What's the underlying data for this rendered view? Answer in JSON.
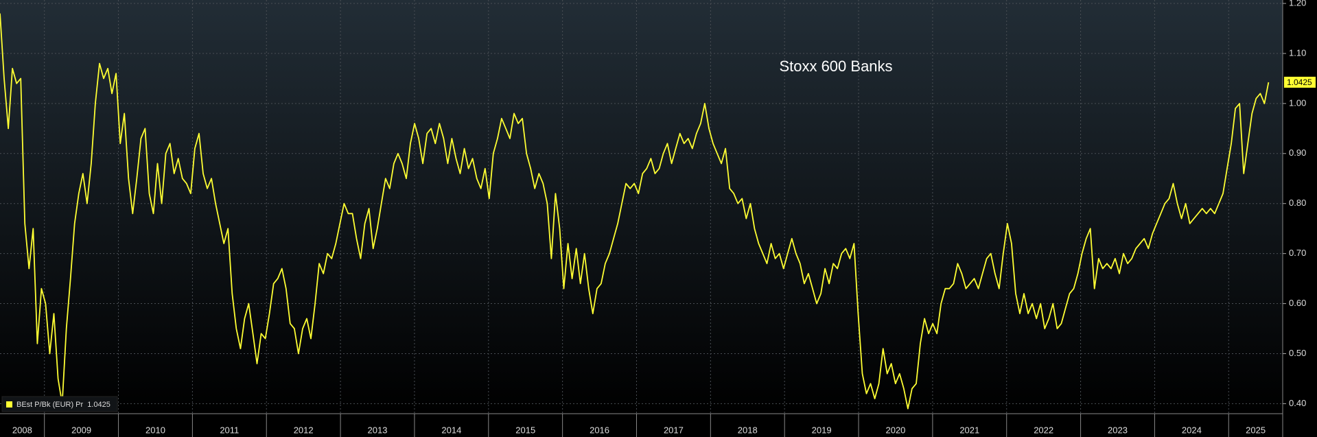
{
  "chart_data": {
    "type": "line",
    "title": "Stoxx 600 Banks",
    "series": [
      {
        "name": "BEst P/Bk (EUR) Pr",
        "color": "#ffff33",
        "values": [
          1.18,
          1.05,
          0.95,
          1.07,
          1.04,
          1.05,
          0.76,
          0.67,
          0.75,
          0.52,
          0.63,
          0.6,
          0.5,
          0.58,
          0.45,
          0.4,
          0.55,
          0.65,
          0.76,
          0.82,
          0.86,
          0.8,
          0.88,
          1.0,
          1.08,
          1.05,
          1.07,
          1.02,
          1.06,
          0.92,
          0.98,
          0.85,
          0.78,
          0.85,
          0.93,
          0.95,
          0.82,
          0.78,
          0.88,
          0.8,
          0.9,
          0.92,
          0.86,
          0.89,
          0.85,
          0.84,
          0.82,
          0.91,
          0.94,
          0.86,
          0.83,
          0.85,
          0.8,
          0.76,
          0.72,
          0.75,
          0.62,
          0.55,
          0.51,
          0.57,
          0.6,
          0.54,
          0.48,
          0.54,
          0.53,
          0.58,
          0.64,
          0.65,
          0.67,
          0.63,
          0.56,
          0.55,
          0.5,
          0.55,
          0.57,
          0.53,
          0.6,
          0.68,
          0.66,
          0.7,
          0.69,
          0.72,
          0.76,
          0.8,
          0.78,
          0.78,
          0.73,
          0.69,
          0.76,
          0.79,
          0.71,
          0.75,
          0.8,
          0.85,
          0.83,
          0.88,
          0.9,
          0.88,
          0.85,
          0.92,
          0.96,
          0.93,
          0.88,
          0.94,
          0.95,
          0.92,
          0.96,
          0.93,
          0.88,
          0.93,
          0.89,
          0.86,
          0.91,
          0.87,
          0.89,
          0.85,
          0.83,
          0.87,
          0.81,
          0.9,
          0.93,
          0.97,
          0.95,
          0.93,
          0.98,
          0.96,
          0.97,
          0.9,
          0.87,
          0.83,
          0.86,
          0.84,
          0.8,
          0.69,
          0.82,
          0.75,
          0.63,
          0.72,
          0.65,
          0.71,
          0.64,
          0.7,
          0.63,
          0.58,
          0.63,
          0.64,
          0.68,
          0.7,
          0.73,
          0.76,
          0.8,
          0.84,
          0.83,
          0.84,
          0.82,
          0.86,
          0.87,
          0.89,
          0.86,
          0.87,
          0.9,
          0.92,
          0.88,
          0.91,
          0.94,
          0.92,
          0.93,
          0.91,
          0.94,
          0.96,
          1.0,
          0.95,
          0.92,
          0.9,
          0.88,
          0.91,
          0.83,
          0.82,
          0.8,
          0.81,
          0.77,
          0.8,
          0.75,
          0.72,
          0.7,
          0.68,
          0.72,
          0.69,
          0.7,
          0.67,
          0.7,
          0.73,
          0.7,
          0.68,
          0.64,
          0.66,
          0.63,
          0.6,
          0.62,
          0.67,
          0.64,
          0.68,
          0.67,
          0.7,
          0.71,
          0.69,
          0.72,
          0.58,
          0.46,
          0.42,
          0.44,
          0.41,
          0.44,
          0.51,
          0.46,
          0.48,
          0.44,
          0.46,
          0.43,
          0.39,
          0.43,
          0.44,
          0.52,
          0.57,
          0.54,
          0.56,
          0.54,
          0.6,
          0.63,
          0.63,
          0.64,
          0.68,
          0.66,
          0.63,
          0.64,
          0.65,
          0.63,
          0.66,
          0.69,
          0.7,
          0.66,
          0.63,
          0.7,
          0.76,
          0.72,
          0.62,
          0.58,
          0.62,
          0.58,
          0.6,
          0.57,
          0.6,
          0.55,
          0.57,
          0.6,
          0.55,
          0.56,
          0.59,
          0.62,
          0.63,
          0.66,
          0.7,
          0.73,
          0.75,
          0.63,
          0.69,
          0.67,
          0.68,
          0.67,
          0.69,
          0.66,
          0.7,
          0.68,
          0.69,
          0.71,
          0.72,
          0.73,
          0.71,
          0.74,
          0.76,
          0.78,
          0.8,
          0.81,
          0.84,
          0.8,
          0.77,
          0.8,
          0.76,
          0.77,
          0.78,
          0.79,
          0.78,
          0.79,
          0.78,
          0.8,
          0.82,
          0.87,
          0.92,
          0.99,
          1.0,
          0.86,
          0.92,
          0.98,
          1.01,
          1.02,
          1.0,
          1.0425
        ]
      }
    ],
    "xlim": [
      2008.4,
      2025.73
    ],
    "xticks": [
      2008,
      2009,
      2010,
      2011,
      2012,
      2013,
      2014,
      2015,
      2016,
      2017,
      2018,
      2019,
      2020,
      2021,
      2022,
      2023,
      2024,
      2025
    ],
    "ylim": [
      0.38,
      1.2
    ],
    "yticks": [
      {
        "value": 0.4,
        "label": "0.40"
      },
      {
        "value": 0.5,
        "label": "0.50"
      },
      {
        "value": 0.6,
        "label": "0.60"
      },
      {
        "value": 0.7,
        "label": "0.70"
      },
      {
        "value": 0.8,
        "label": "0.80"
      },
      {
        "value": 0.9,
        "label": "0.90"
      },
      {
        "value": 1.0,
        "label": "1.00"
      },
      {
        "value": 1.1,
        "label": "1.10"
      },
      {
        "value": 1.2,
        "label": "1.20"
      }
    ],
    "grid": true
  }
}
